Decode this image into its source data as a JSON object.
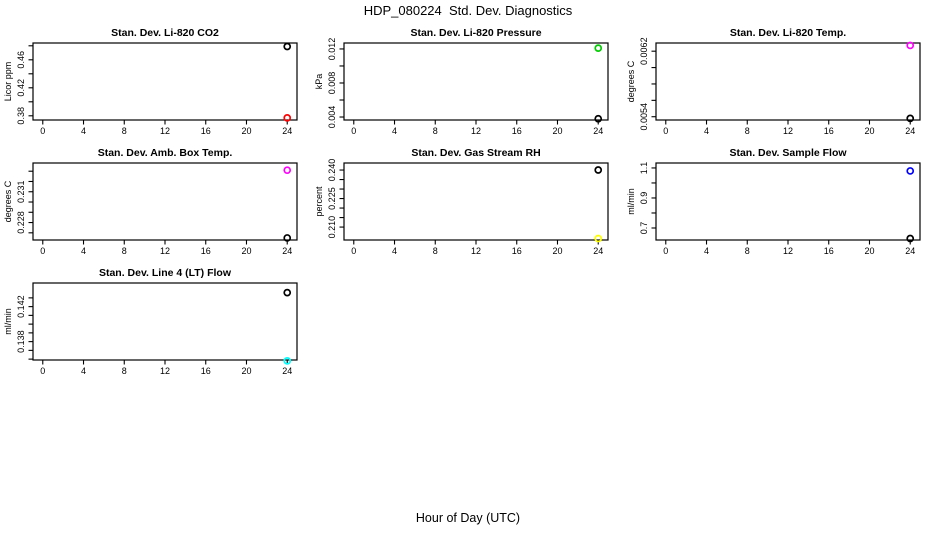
{
  "figure": {
    "title": "HDP_080224  Std. Dev. Diagnostics",
    "xlabel": "Hour of Day (UTC)",
    "background": "#FFFFFF"
  },
  "palette": {
    "black": "#000000",
    "red": "#FF0000",
    "green": "#00CD00",
    "blue": "#0000FF",
    "cyan": "#00FFFF",
    "magenta": "#FF00FF",
    "yellow": "#FFFF00"
  },
  "chart_data": [
    {
      "type": "scatter",
      "id": "li820-co2",
      "title": "Stan. Dev. Li-820 CO2",
      "ylabel": "Licor ppm",
      "xlim": [
        -0.96,
        24.96
      ],
      "ylim": [
        0.374,
        0.484
      ],
      "xticks": [
        {
          "v": 0,
          "label": "0"
        },
        {
          "v": 4,
          "label": "4"
        },
        {
          "v": 8,
          "label": "8"
        },
        {
          "v": 12,
          "label": "12"
        },
        {
          "v": 16,
          "label": "16"
        },
        {
          "v": 20,
          "label": "20"
        },
        {
          "v": 24,
          "label": "24"
        }
      ],
      "yticks": [
        {
          "v": 0.38,
          "label": "0.38"
        },
        {
          "v": 0.4
        },
        {
          "v": 0.42,
          "label": "0.42"
        },
        {
          "v": 0.44
        },
        {
          "v": 0.46,
          "label": "0.46"
        },
        {
          "v": 0.48
        }
      ],
      "points": [
        {
          "x": 24,
          "y": 0.479,
          "color": "#000000"
        },
        {
          "x": 24,
          "y": 0.377,
          "color": "#FF0000"
        }
      ]
    },
    {
      "type": "scatter",
      "id": "li820-pressure",
      "title": "Stan. Dev. Li-820 Pressure",
      "ylabel": "kPa",
      "xlim": [
        -0.96,
        24.96
      ],
      "ylim": [
        0.00365,
        0.0127
      ],
      "xticks": [
        {
          "v": 0,
          "label": "0"
        },
        {
          "v": 4,
          "label": "4"
        },
        {
          "v": 8,
          "label": "8"
        },
        {
          "v": 12,
          "label": "12"
        },
        {
          "v": 16,
          "label": "16"
        },
        {
          "v": 20,
          "label": "20"
        },
        {
          "v": 24,
          "label": "24"
        }
      ],
      "yticks": [
        {
          "v": 0.004,
          "label": "0.004"
        },
        {
          "v": 0.006
        },
        {
          "v": 0.008,
          "label": "0.008"
        },
        {
          "v": 0.01
        },
        {
          "v": 0.012,
          "label": "0.012"
        }
      ],
      "points": [
        {
          "x": 24,
          "y": 0.0121,
          "color": "#00CD00"
        },
        {
          "x": 24,
          "y": 0.0038,
          "color": "#000000"
        }
      ]
    },
    {
      "type": "scatter",
      "id": "li820-temp",
      "title": "Stan. Dev. Li-820 Temp.",
      "ylabel": "degrees C",
      "xlim": [
        -0.96,
        24.96
      ],
      "ylim": [
        0.00536,
        0.0063
      ],
      "xticks": [
        {
          "v": 0,
          "label": "0"
        },
        {
          "v": 4,
          "label": "4"
        },
        {
          "v": 8,
          "label": "8"
        },
        {
          "v": 12,
          "label": "12"
        },
        {
          "v": 16,
          "label": "16"
        },
        {
          "v": 20,
          "label": "20"
        },
        {
          "v": 24,
          "label": "24"
        }
      ],
      "yticks": [
        {
          "v": 0.0054,
          "label": "0.0054"
        },
        {
          "v": 0.0056
        },
        {
          "v": 0.0058
        },
        {
          "v": 0.006
        },
        {
          "v": 0.0062,
          "label": "0.0062"
        }
      ],
      "points": [
        {
          "x": 24,
          "y": 0.00627,
          "color": "#FF00FF"
        },
        {
          "x": 24,
          "y": 0.00538,
          "color": "#000000"
        }
      ]
    },
    {
      "type": "scatter",
      "id": "amb-box-temp",
      "title": "Stan. Dev. Amb. Box Temp.",
      "ylabel": "degrees C",
      "xlim": [
        -0.96,
        24.96
      ],
      "ylim": [
        0.2263,
        0.2338
      ],
      "xticks": [
        {
          "v": 0,
          "label": "0"
        },
        {
          "v": 4,
          "label": "4"
        },
        {
          "v": 8,
          "label": "8"
        },
        {
          "v": 12,
          "label": "12"
        },
        {
          "v": 16,
          "label": "16"
        },
        {
          "v": 20,
          "label": "20"
        },
        {
          "v": 24,
          "label": "24"
        }
      ],
      "yticks": [
        {
          "v": 0.227
        },
        {
          "v": 0.228,
          "label": "0.228"
        },
        {
          "v": 0.229
        },
        {
          "v": 0.23
        },
        {
          "v": 0.231,
          "label": "0.231"
        },
        {
          "v": 0.232
        },
        {
          "v": 0.233
        }
      ],
      "points": [
        {
          "x": 24,
          "y": 0.2331,
          "color": "#FF00FF"
        },
        {
          "x": 24,
          "y": 0.2265,
          "color": "#000000"
        }
      ]
    },
    {
      "type": "scatter",
      "id": "gas-stream-rh",
      "title": "Stan. Dev. Gas Stream RH",
      "ylabel": "percent",
      "xlim": [
        -0.96,
        24.96
      ],
      "ylim": [
        0.2032,
        0.2437
      ],
      "xticks": [
        {
          "v": 0,
          "label": "0"
        },
        {
          "v": 4,
          "label": "4"
        },
        {
          "v": 8,
          "label": "8"
        },
        {
          "v": 12,
          "label": "12"
        },
        {
          "v": 16,
          "label": "16"
        },
        {
          "v": 20,
          "label": "20"
        },
        {
          "v": 24,
          "label": "24"
        }
      ],
      "yticks": [
        {
          "v": 0.21,
          "label": "0.210"
        },
        {
          "v": 0.215
        },
        {
          "v": 0.22
        },
        {
          "v": 0.225,
          "label": "0.225"
        },
        {
          "v": 0.23
        },
        {
          "v": 0.235
        },
        {
          "v": 0.24,
          "label": "0.240"
        }
      ],
      "points": [
        {
          "x": 24,
          "y": 0.24,
          "color": "#000000"
        },
        {
          "x": 24,
          "y": 0.204,
          "color": "#FFFF00"
        }
      ]
    },
    {
      "type": "scatter",
      "id": "sample-flow",
      "title": "Stan. Dev. Sample Flow",
      "ylabel": "ml/min",
      "xlim": [
        -0.96,
        24.96
      ],
      "ylim": [
        0.62,
        1.133
      ],
      "xticks": [
        {
          "v": 0,
          "label": "0"
        },
        {
          "v": 4,
          "label": "4"
        },
        {
          "v": 8,
          "label": "8"
        },
        {
          "v": 12,
          "label": "12"
        },
        {
          "v": 16,
          "label": "16"
        },
        {
          "v": 20,
          "label": "20"
        },
        {
          "v": 24,
          "label": "24"
        }
      ],
      "yticks": [
        {
          "v": 0.7,
          "label": "0.7"
        },
        {
          "v": 0.8
        },
        {
          "v": 0.9,
          "label": "0.9"
        },
        {
          "v": 1.0
        },
        {
          "v": 1.1,
          "label": "1.1"
        }
      ],
      "points": [
        {
          "x": 24,
          "y": 1.08,
          "color": "#0000FF"
        },
        {
          "x": 24,
          "y": 0.63,
          "color": "#000000"
        }
      ]
    },
    {
      "type": "scatter",
      "id": "line4-lt-flow",
      "title": "Stan. Dev. Line 4 (LT) Flow",
      "ylabel": "ml/min",
      "xlim": [
        -0.96,
        24.96
      ],
      "ylim": [
        0.1359,
        0.1447
      ],
      "xticks": [
        {
          "v": 0,
          "label": "0"
        },
        {
          "v": 4,
          "label": "4"
        },
        {
          "v": 8,
          "label": "8"
        },
        {
          "v": 12,
          "label": "12"
        },
        {
          "v": 16,
          "label": "16"
        },
        {
          "v": 20,
          "label": "20"
        },
        {
          "v": 24,
          "label": "24"
        }
      ],
      "yticks": [
        {
          "v": 0.136
        },
        {
          "v": 0.137
        },
        {
          "v": 0.138,
          "label": "0.138"
        },
        {
          "v": 0.139
        },
        {
          "v": 0.14
        },
        {
          "v": 0.141
        },
        {
          "v": 0.142,
          "label": "0.142"
        },
        {
          "v": 0.143
        }
      ],
      "points": [
        {
          "x": 24,
          "y": 0.1436,
          "color": "#000000"
        },
        {
          "x": 24,
          "y": 0.1358,
          "color": "#00FFFF"
        }
      ]
    }
  ]
}
